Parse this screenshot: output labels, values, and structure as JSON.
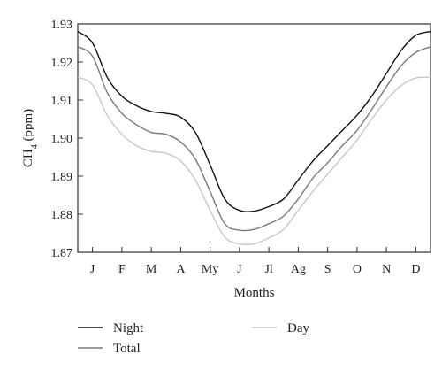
{
  "chart_data": {
    "type": "line",
    "xlabel": "Months",
    "ylabel": "CH",
    "ylabel_subscript": "4",
    "ylabel_suffix": " (ppm)",
    "ylim": [
      1.87,
      1.93
    ],
    "y_ticks": [
      "1.87",
      "1.88",
      "1.89",
      "1.90",
      "1.91",
      "1.92",
      "1.93"
    ],
    "y_tick_values": [
      1.87,
      1.88,
      1.89,
      1.9,
      1.91,
      1.92,
      1.93
    ],
    "categories": [
      "J",
      "F",
      "M",
      "A",
      "My",
      "J",
      "Jl",
      "Ag",
      "S",
      "O",
      "N",
      "D"
    ],
    "grid": false,
    "legend_position": "bottom",
    "series": [
      {
        "name": "Night",
        "color": "#111111",
        "x": [
          0.0,
          0.5,
          1.0,
          1.5,
          2.0,
          2.5,
          3.0,
          3.5,
          4.0,
          4.5,
          5.0,
          5.5,
          6.0,
          6.5,
          7.0,
          7.5,
          8.0,
          8.5,
          9.0,
          9.5,
          10.0,
          10.5,
          11.0,
          11.5,
          12.0
        ],
        "values": [
          1.928,
          1.925,
          1.916,
          1.911,
          1.9085,
          1.907,
          1.9065,
          1.9055,
          1.9015,
          1.893,
          1.884,
          1.881,
          1.8808,
          1.882,
          1.884,
          1.889,
          1.894,
          1.898,
          1.902,
          1.906,
          1.911,
          1.917,
          1.923,
          1.927,
          1.928
        ]
      },
      {
        "name": "Day",
        "color": "#c8c8c8",
        "x": [
          0.0,
          0.5,
          1.0,
          1.5,
          2.0,
          2.5,
          3.0,
          3.5,
          4.0,
          4.5,
          5.0,
          5.5,
          6.0,
          6.5,
          7.0,
          7.5,
          8.0,
          8.5,
          9.0,
          9.5,
          10.0,
          10.5,
          11.0,
          11.5,
          12.0
        ],
        "values": [
          1.916,
          1.914,
          1.906,
          1.901,
          1.898,
          1.8965,
          1.896,
          1.894,
          1.889,
          1.881,
          1.874,
          1.8722,
          1.8722,
          1.8738,
          1.876,
          1.881,
          1.886,
          1.8905,
          1.895,
          1.8995,
          1.905,
          1.91,
          1.9138,
          1.9158,
          1.916
        ]
      },
      {
        "name": "Total",
        "color": "#7a7a7a",
        "x": [
          0.0,
          0.5,
          1.0,
          1.5,
          2.0,
          2.5,
          3.0,
          3.5,
          4.0,
          4.5,
          5.0,
          5.5,
          6.0,
          6.5,
          7.0,
          7.5,
          8.0,
          8.5,
          9.0,
          9.5,
          10.0,
          10.5,
          11.0,
          11.5,
          12.0
        ],
        "values": [
          1.924,
          1.9215,
          1.912,
          1.9065,
          1.9035,
          1.9015,
          1.901,
          1.899,
          1.8945,
          1.886,
          1.8775,
          1.8758,
          1.876,
          1.8775,
          1.8795,
          1.884,
          1.8895,
          1.8935,
          1.898,
          1.902,
          1.9075,
          1.9135,
          1.919,
          1.9225,
          1.924
        ]
      }
    ],
    "legend": [
      {
        "name": "Night",
        "color": "#111111"
      },
      {
        "name": "Day",
        "color": "#c8c8c8"
      },
      {
        "name": "Total",
        "color": "#7a7a7a"
      }
    ]
  }
}
